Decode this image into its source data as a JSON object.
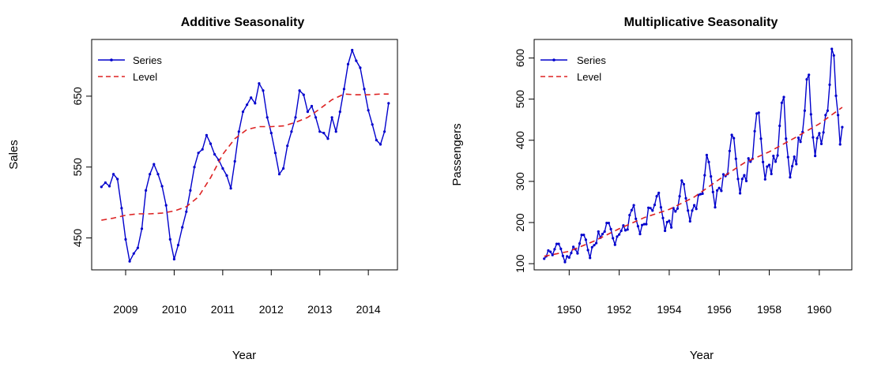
{
  "chart_data": [
    {
      "type": "line",
      "title": "Additive Seasonality",
      "xlabel": "Year",
      "ylabel": "Sales",
      "xlim": [
        2008.3,
        2014.6
      ],
      "ylim": [
        405,
        730
      ],
      "x_ticks": [
        2009,
        2010,
        2011,
        2012,
        2013,
        2014
      ],
      "y_ticks": [
        450,
        550,
        650
      ],
      "legend_position": "top-left",
      "series": [
        {
          "name": "Series",
          "color": "#0000cc",
          "style": "solid-with-points",
          "x": [
            2008.5,
            2008.583,
            2008.667,
            2008.75,
            2008.833,
            2008.917,
            2009.0,
            2009.083,
            2009.167,
            2009.25,
            2009.333,
            2009.417,
            2009.5,
            2009.583,
            2009.667,
            2009.75,
            2009.833,
            2009.917,
            2010.0,
            2010.083,
            2010.167,
            2010.25,
            2010.333,
            2010.417,
            2010.5,
            2010.583,
            2010.667,
            2010.75,
            2010.833,
            2010.917,
            2011.0,
            2011.083,
            2011.167,
            2011.25,
            2011.333,
            2011.417,
            2011.5,
            2011.583,
            2011.667,
            2011.75,
            2011.833,
            2011.917,
            2012.0,
            2012.083,
            2012.167,
            2012.25,
            2012.333,
            2012.417,
            2012.5,
            2012.583,
            2012.667,
            2012.75,
            2012.833,
            2012.917,
            2013.0,
            2013.083,
            2013.167,
            2013.25,
            2013.333,
            2013.417,
            2013.5,
            2013.583,
            2013.667,
            2013.75,
            2013.833,
            2013.917,
            2014.0,
            2014.083,
            2014.167,
            2014.25,
            2014.333,
            2014.417
          ],
          "y": [
            522,
            528,
            523,
            540,
            533,
            492,
            448,
            417,
            428,
            436,
            463,
            517,
            540,
            554,
            540,
            523,
            496,
            448,
            420,
            440,
            465,
            487,
            517,
            550,
            570,
            575,
            595,
            583,
            568,
            560,
            548,
            538,
            520,
            558,
            600,
            628,
            638,
            648,
            640,
            668,
            658,
            620,
            598,
            570,
            540,
            548,
            580,
            600,
            620,
            658,
            652,
            628,
            636,
            620,
            600,
            598,
            590,
            620,
            600,
            628,
            660,
            695,
            715,
            700,
            690,
            660,
            630,
            610,
            588,
            582,
            600,
            640
          ]
        },
        {
          "name": "Level",
          "color": "#dd2222",
          "style": "dashed",
          "x": [
            2008.5,
            2008.75,
            2009.0,
            2009.25,
            2009.5,
            2009.75,
            2010.0,
            2010.25,
            2010.5,
            2010.75,
            2011.0,
            2011.25,
            2011.5,
            2011.75,
            2012.0,
            2012.25,
            2012.5,
            2012.75,
            2013.0,
            2013.25,
            2013.5,
            2013.75,
            2014.0,
            2014.25,
            2014.417
          ],
          "y": [
            475,
            478,
            482,
            484,
            484,
            485,
            488,
            494,
            508,
            535,
            568,
            590,
            603,
            607,
            607,
            608,
            613,
            620,
            632,
            645,
            653,
            652,
            652,
            653,
            653
          ]
        }
      ]
    },
    {
      "type": "line",
      "title": "Multiplicative Seasonality",
      "xlabel": "Year",
      "ylabel": "Passengers",
      "xlim": [
        1948.6,
        1961.3
      ],
      "ylim": [
        85,
        645
      ],
      "x_ticks": [
        1950,
        1952,
        1954,
        1956,
        1958,
        1960
      ],
      "y_ticks": [
        100,
        200,
        300,
        400,
        500,
        600
      ],
      "legend_position": "top-left",
      "series": [
        {
          "name": "Series",
          "color": "#0000cc",
          "style": "solid-with-points",
          "x": [
            1949.0,
            1949.083,
            1949.167,
            1949.25,
            1949.333,
            1949.417,
            1949.5,
            1949.583,
            1949.667,
            1949.75,
            1949.833,
            1949.917,
            1950.0,
            1950.083,
            1950.167,
            1950.25,
            1950.333,
            1950.417,
            1950.5,
            1950.583,
            1950.667,
            1950.75,
            1950.833,
            1950.917,
            1951.0,
            1951.083,
            1951.167,
            1951.25,
            1951.333,
            1951.417,
            1951.5,
            1951.583,
            1951.667,
            1951.75,
            1951.833,
            1951.917,
            1952.0,
            1952.083,
            1952.167,
            1952.25,
            1952.333,
            1952.417,
            1952.5,
            1952.583,
            1952.667,
            1952.75,
            1952.833,
            1952.917,
            1953.0,
            1953.083,
            1953.167,
            1953.25,
            1953.333,
            1953.417,
            1953.5,
            1953.583,
            1953.667,
            1953.75,
            1953.833,
            1953.917,
            1954.0,
            1954.083,
            1954.167,
            1954.25,
            1954.333,
            1954.417,
            1954.5,
            1954.583,
            1954.667,
            1954.75,
            1954.833,
            1954.917,
            1955.0,
            1955.083,
            1955.167,
            1955.25,
            1955.333,
            1955.417,
            1955.5,
            1955.583,
            1955.667,
            1955.75,
            1955.833,
            1955.917,
            1956.0,
            1956.083,
            1956.167,
            1956.25,
            1956.333,
            1956.417,
            1956.5,
            1956.583,
            1956.667,
            1956.75,
            1956.833,
            1956.917,
            1957.0,
            1957.083,
            1957.167,
            1957.25,
            1957.333,
            1957.417,
            1957.5,
            1957.583,
            1957.667,
            1957.75,
            1957.833,
            1957.917,
            1958.0,
            1958.083,
            1958.167,
            1958.25,
            1958.333,
            1958.417,
            1958.5,
            1958.583,
            1958.667,
            1958.75,
            1958.833,
            1958.917,
            1959.0,
            1959.083,
            1959.167,
            1959.25,
            1959.333,
            1959.417,
            1959.5,
            1959.583,
            1959.667,
            1959.75,
            1959.833,
            1959.917,
            1960.0,
            1960.083,
            1960.167,
            1960.25,
            1960.333,
            1960.417,
            1960.5,
            1960.583,
            1960.667,
            1960.75,
            1960.833,
            1960.917
          ],
          "y": [
            112,
            118,
            132,
            129,
            121,
            135,
            148,
            148,
            136,
            119,
            104,
            118,
            115,
            126,
            141,
            135,
            125,
            149,
            170,
            170,
            158,
            133,
            114,
            140,
            145,
            150,
            178,
            163,
            172,
            178,
            199,
            199,
            184,
            162,
            146,
            166,
            171,
            180,
            193,
            181,
            183,
            218,
            230,
            242,
            209,
            191,
            172,
            194,
            196,
            196,
            236,
            235,
            229,
            243,
            264,
            272,
            237,
            211,
            180,
            201,
            204,
            188,
            235,
            227,
            234,
            264,
            302,
            293,
            259,
            229,
            203,
            229,
            242,
            233,
            267,
            269,
            270,
            315,
            364,
            347,
            312,
            274,
            237,
            278,
            284,
            277,
            317,
            313,
            318,
            374,
            413,
            405,
            355,
            306,
            271,
            306,
            315,
            301,
            356,
            348,
            355,
            422,
            465,
            467,
            404,
            347,
            305,
            336,
            340,
            318,
            362,
            348,
            363,
            435,
            491,
            505,
            404,
            359,
            310,
            337,
            360,
            342,
            406,
            396,
            420,
            472,
            548,
            559,
            463,
            407,
            362,
            405,
            417,
            391,
            419,
            461,
            472,
            535,
            622,
            606,
            508,
            461,
            390,
            432
          ]
        },
        {
          "name": "Level",
          "color": "#dd2222",
          "style": "dashed",
          "x": [
            1949.0,
            1950.0,
            1951.0,
            1952.0,
            1953.0,
            1954.0,
            1955.0,
            1956.0,
            1957.0,
            1958.0,
            1959.0,
            1960.0,
            1960.917
          ],
          "y": [
            118,
            130,
            155,
            185,
            212,
            232,
            262,
            305,
            345,
            372,
            405,
            440,
            480
          ]
        }
      ]
    }
  ]
}
